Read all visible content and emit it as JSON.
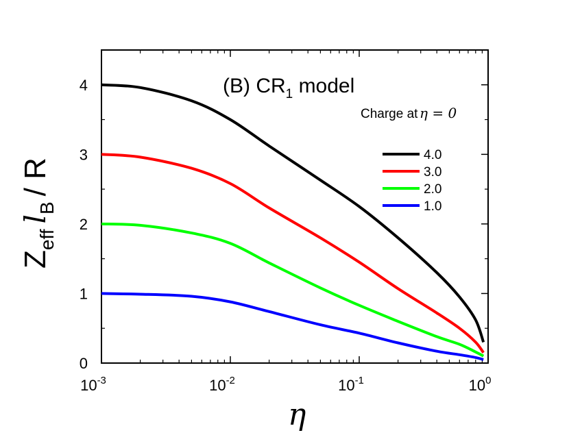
{
  "chart_data": {
    "type": "line",
    "title": "(B) CR",
    "title_subscript": "1",
    "title_suffix": " model",
    "xlabel": "η",
    "ylabel": {
      "main": "Z",
      "sub1": "eff",
      "mid": "l",
      "sub2": "B",
      "tail": "/ R"
    },
    "xscale": "log",
    "xlim": [
      0.001,
      1
    ],
    "ylim": [
      0,
      4.5
    ],
    "xticks": [
      {
        "value": 0.001,
        "base": "10",
        "exp": "-3"
      },
      {
        "value": 0.01,
        "base": "10",
        "exp": "-2"
      },
      {
        "value": 0.1,
        "base": "10",
        "exp": "-1"
      },
      {
        "value": 1,
        "base": "10",
        "exp": "0"
      }
    ],
    "yticks": [
      "0",
      "1",
      "2",
      "3",
      "4"
    ],
    "legend_title": "Charge at",
    "legend_title_math": "η = 0",
    "legend_position": "upper-right",
    "series": [
      {
        "name": "4.0",
        "color": "#000000",
        "x": [
          0.001,
          0.002,
          0.005,
          0.01,
          0.02,
          0.05,
          0.1,
          0.2,
          0.4,
          0.6,
          0.8,
          0.92
        ],
        "y": [
          4.0,
          3.96,
          3.77,
          3.5,
          3.12,
          2.63,
          2.25,
          1.8,
          1.3,
          0.95,
          0.62,
          0.3
        ]
      },
      {
        "name": "3.0",
        "color": "#ff0000",
        "x": [
          0.001,
          0.002,
          0.005,
          0.01,
          0.02,
          0.05,
          0.1,
          0.2,
          0.4,
          0.6,
          0.8,
          0.92
        ],
        "y": [
          3.0,
          2.96,
          2.8,
          2.58,
          2.23,
          1.8,
          1.45,
          1.07,
          0.72,
          0.5,
          0.3,
          0.15
        ]
      },
      {
        "name": "2.0",
        "color": "#00ff00",
        "x": [
          0.001,
          0.002,
          0.005,
          0.01,
          0.02,
          0.05,
          0.1,
          0.2,
          0.4,
          0.6,
          0.8,
          0.92
        ],
        "y": [
          2.0,
          1.98,
          1.87,
          1.72,
          1.44,
          1.08,
          0.83,
          0.6,
          0.38,
          0.27,
          0.16,
          0.1
        ]
      },
      {
        "name": "1.0",
        "color": "#0000ff",
        "x": [
          0.001,
          0.002,
          0.005,
          0.01,
          0.02,
          0.05,
          0.1,
          0.2,
          0.4,
          0.6,
          0.8,
          0.92
        ],
        "y": [
          1.0,
          0.99,
          0.96,
          0.88,
          0.74,
          0.55,
          0.43,
          0.29,
          0.17,
          0.12,
          0.08,
          0.05
        ]
      }
    ]
  }
}
